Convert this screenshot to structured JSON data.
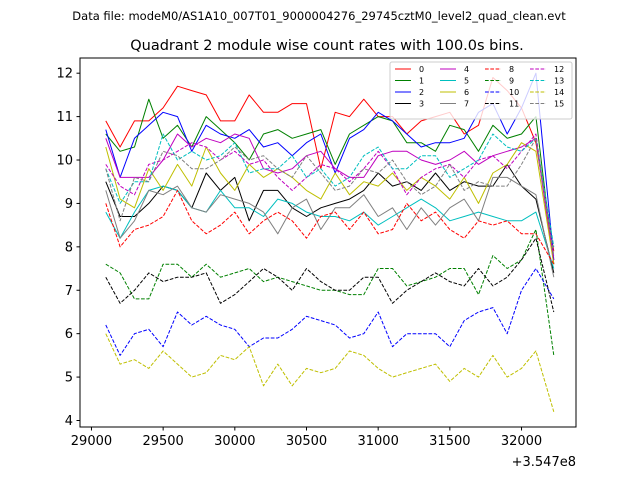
{
  "chart_data": {
    "type": "line",
    "suptitle": "Data file: modeM0/AS1A10_007T01_9000004276_29745cztM0_level2_quad_clean.evt",
    "title": "Quadrant 2 module wise count rates with 100.0s bins.",
    "xlabel": "",
    "ylabel": "",
    "offset_label": "+3.547e8",
    "xlim": [
      28920,
      32380
    ],
    "ylim": [
      3.85,
      12.35
    ],
    "xticks": [
      29000,
      29500,
      30000,
      30500,
      31000,
      31500,
      32000
    ],
    "yticks": [
      4,
      5,
      6,
      7,
      8,
      9,
      10,
      11,
      12
    ],
    "x": [
      29100,
      29200,
      29300,
      29400,
      29500,
      29600,
      29700,
      29800,
      29900,
      30000,
      30100,
      30200,
      30300,
      30400,
      30500,
      30600,
      30700,
      30800,
      30900,
      31000,
      31100,
      31200,
      31300,
      31400,
      31500,
      31600,
      31700,
      31800,
      31900,
      32000,
      32100,
      32225
    ],
    "legend_location": "upper right",
    "series": [
      {
        "name": "0",
        "color": "#ff0000",
        "dash": "solid",
        "values": [
          10.9,
          10.3,
          10.9,
          10.9,
          11.2,
          11.7,
          11.6,
          11.5,
          10.9,
          10.9,
          11.5,
          11.1,
          11.1,
          11.3,
          11.3,
          9.8,
          11.1,
          11.0,
          11.4,
          11.0,
          11.0,
          10.6,
          10.9,
          11.0,
          11.1,
          10.6,
          10.8,
          11.9,
          11.6,
          11.2,
          10.4,
          7.9
        ]
      },
      {
        "name": "1",
        "color": "#008000",
        "dash": "solid",
        "values": [
          10.6,
          10.2,
          10.3,
          11.4,
          10.5,
          10.8,
          10.3,
          11.0,
          10.7,
          10.4,
          10.0,
          10.6,
          10.7,
          10.5,
          10.6,
          10.7,
          9.9,
          10.6,
          10.8,
          11.0,
          10.9,
          10.4,
          10.4,
          10.2,
          10.8,
          10.7,
          10.2,
          10.8,
          10.5,
          10.6,
          11.0,
          7.6
        ]
      },
      {
        "name": "2",
        "color": "#0000ff",
        "dash": "solid",
        "values": [
          10.7,
          9.6,
          10.5,
          10.8,
          11.1,
          11.0,
          10.2,
          10.8,
          10.6,
          10.5,
          10.7,
          10.3,
          10.4,
          10.1,
          10.4,
          10.6,
          9.7,
          10.5,
          10.7,
          11.1,
          10.9,
          10.6,
          10.3,
          10.4,
          10.4,
          10.5,
          11.1,
          11.3,
          10.6,
          11.2,
          12.0,
          7.7
        ]
      },
      {
        "name": "3",
        "color": "#000000",
        "dash": "solid",
        "values": [
          9.5,
          8.7,
          8.7,
          9.0,
          9.4,
          9.3,
          8.9,
          9.7,
          9.3,
          9.6,
          8.6,
          9.3,
          9.3,
          8.9,
          8.7,
          8.9,
          9.0,
          9.1,
          9.3,
          9.7,
          9.4,
          9.5,
          9.3,
          9.7,
          9.3,
          9.5,
          9.4,
          9.4,
          9.9,
          9.4,
          9.1,
          7.4
        ]
      },
      {
        "name": "4",
        "color": "#bf00bf",
        "dash": "solid",
        "values": [
          10.5,
          9.6,
          9.6,
          9.6,
          10.0,
          10.6,
          10.3,
          10.5,
          10.4,
          10.6,
          10.5,
          9.8,
          9.7,
          9.8,
          10.1,
          10.2,
          9.8,
          9.6,
          9.6,
          10.1,
          10.2,
          10.2,
          10.0,
          9.9,
          10.0,
          10.2,
          9.9,
          10.1,
          10.2,
          10.3,
          10.5,
          7.6
        ]
      },
      {
        "name": "5",
        "color": "#00bfbf",
        "dash": "solid",
        "values": [
          8.8,
          8.2,
          8.8,
          9.3,
          9.4,
          9.3,
          8.9,
          8.8,
          9.3,
          8.9,
          8.9,
          8.7,
          9.1,
          9.0,
          8.8,
          8.7,
          8.7,
          8.6,
          8.8,
          8.5,
          8.7,
          8.9,
          9.1,
          8.9,
          8.6,
          8.7,
          8.8,
          8.7,
          8.6,
          8.6,
          8.8,
          7.5
        ]
      },
      {
        "name": "6",
        "color": "#bfbf00",
        "dash": "solid",
        "values": [
          10.3,
          9.1,
          8.9,
          9.8,
          9.3,
          9.9,
          9.4,
          10.3,
          9.7,
          9.3,
          9.9,
          9.6,
          9.8,
          9.6,
          9.3,
          9.1,
          9.7,
          9.2,
          9.5,
          9.4,
          9.7,
          9.3,
          9.6,
          9.4,
          9.1,
          9.6,
          9.0,
          9.7,
          9.9,
          10.4,
          10.2,
          7.6
        ]
      },
      {
        "name": "7",
        "color": "#808080",
        "dash": "solid",
        "values": [
          9.3,
          8.2,
          8.6,
          9.3,
          9.2,
          9.4,
          8.9,
          8.8,
          9.2,
          9.1,
          9.0,
          8.8,
          8.3,
          8.9,
          9.1,
          8.4,
          8.9,
          8.9,
          9.2,
          8.7,
          8.9,
          8.4,
          8.9,
          8.5,
          8.9,
          9.1,
          8.6,
          9.6,
          9.6,
          9.4,
          9.2,
          7.3
        ]
      },
      {
        "name": "8",
        "color": "#ff0000",
        "dash": "dashed",
        "values": [
          9.0,
          8.0,
          8.4,
          8.5,
          8.7,
          9.3,
          8.6,
          8.3,
          8.5,
          8.8,
          8.3,
          8.6,
          8.8,
          8.6,
          8.2,
          8.7,
          8.8,
          8.4,
          8.8,
          8.3,
          8.4,
          9.0,
          8.6,
          8.8,
          8.4,
          8.2,
          8.6,
          8.5,
          8.6,
          8.3,
          8.3,
          7.6
        ]
      },
      {
        "name": "9",
        "color": "#008000",
        "dash": "dashed",
        "values": [
          7.6,
          7.4,
          6.8,
          6.8,
          7.6,
          7.6,
          7.3,
          7.6,
          7.3,
          7.4,
          7.5,
          7.2,
          7.3,
          7.2,
          7.1,
          7.0,
          7.0,
          6.9,
          6.9,
          7.5,
          7.5,
          7.1,
          7.2,
          7.3,
          7.5,
          7.5,
          6.9,
          7.8,
          7.5,
          7.7,
          8.4,
          5.5
        ]
      },
      {
        "name": "10",
        "color": "#0000ff",
        "dash": "dashed",
        "values": [
          6.2,
          5.5,
          6.0,
          6.1,
          5.7,
          6.5,
          6.2,
          6.4,
          6.2,
          6.1,
          5.7,
          5.9,
          5.9,
          6.1,
          6.4,
          6.3,
          6.2,
          5.9,
          6.0,
          6.5,
          5.7,
          6.0,
          6.0,
          6.0,
          5.7,
          6.3,
          6.5,
          6.6,
          6.0,
          7.0,
          7.5,
          6.8
        ]
      },
      {
        "name": "11",
        "color": "#000000",
        "dash": "dashed",
        "values": [
          7.3,
          6.7,
          7.0,
          7.4,
          7.2,
          7.3,
          7.3,
          7.4,
          6.7,
          6.9,
          7.2,
          7.5,
          7.3,
          7.0,
          7.5,
          7.2,
          7.0,
          7.0,
          7.3,
          7.3,
          6.7,
          7.0,
          7.2,
          7.4,
          7.2,
          7.1,
          7.5,
          7.1,
          7.3,
          7.7,
          8.2,
          6.5
        ]
      },
      {
        "name": "12",
        "color": "#bf00bf",
        "dash": "dashed",
        "values": [
          9.9,
          9.4,
          9.2,
          9.9,
          10.0,
          10.2,
          10.4,
          10.3,
          10.0,
          10.2,
          9.9,
          10.0,
          9.6,
          9.3,
          9.6,
          9.9,
          9.8,
          9.5,
          9.8,
          10.2,
          9.8,
          9.2,
          9.6,
          9.8,
          9.9,
          9.6,
          10.0,
          10.1,
          9.8,
          10.2,
          10.6,
          7.7
        ]
      },
      {
        "name": "13",
        "color": "#00bfbf",
        "dash": "dashed",
        "values": [
          9.8,
          9.0,
          9.5,
          9.5,
          10.6,
          10.0,
          10.2,
          10.0,
          10.1,
          10.4,
          9.7,
          9.8,
          9.8,
          10.1,
          9.6,
          9.8,
          9.4,
          9.6,
          10.1,
          10.3,
          9.8,
          9.8,
          10.1,
          10.1,
          9.6,
          9.8,
          10.0,
          10.6,
          10.3,
          10.2,
          10.5,
          8.0
        ]
      },
      {
        "name": "14",
        "color": "#bfbf00",
        "dash": "dashed",
        "values": [
          6.0,
          5.3,
          5.4,
          5.2,
          5.6,
          5.3,
          5.0,
          5.1,
          5.5,
          5.4,
          5.7,
          4.8,
          5.3,
          4.8,
          5.2,
          5.1,
          5.2,
          5.6,
          5.5,
          5.2,
          5.0,
          5.1,
          5.2,
          5.3,
          4.9,
          5.2,
          5.0,
          5.5,
          5.0,
          5.2,
          5.6,
          4.2
        ]
      },
      {
        "name": "15",
        "color": "#808080",
        "dash": "dashed",
        "values": [
          9.8,
          8.6,
          9.6,
          9.5,
          10.2,
          10.1,
          9.8,
          9.8,
          10.0,
          10.3,
          10.0,
          10.1,
          9.8,
          9.6,
          10.1,
          9.7,
          9.3,
          9.4,
          9.8,
          9.7,
          10.0,
          9.5,
          9.2,
          9.4,
          9.9,
          9.3,
          9.5,
          9.4,
          9.4,
          9.9,
          10.5,
          7.8
        ]
      }
    ]
  }
}
